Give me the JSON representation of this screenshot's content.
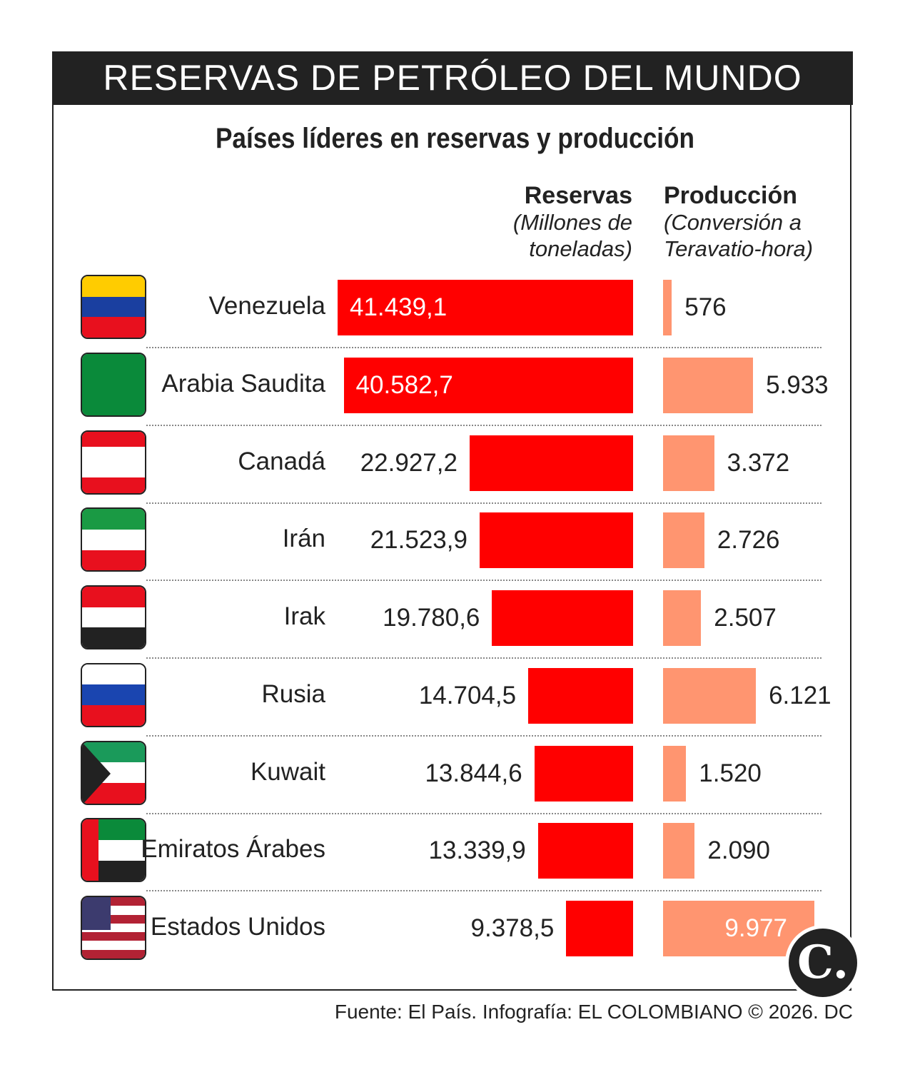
{
  "title": "RESERVAS DE PETRÓLEO DEL MUNDO",
  "subtitle": "Países líderes en reservas y producción",
  "headers": {
    "reservas": "Reservas",
    "reservas_unit_1": "(Millones de",
    "reservas_unit_2": "toneladas)",
    "produccion": "Producción",
    "produccion_unit_1": "(Conversión a",
    "produccion_unit_2": "Teravatio-hora)"
  },
  "source": "Fuente: El País. Infografía: EL COLOMBIANO © 2026. DC",
  "logo": "C.",
  "colors": {
    "reservas": "#ff0000",
    "produccion": "#ff9570",
    "title_bg": "#222222"
  },
  "chart_data": {
    "type": "bar",
    "orientation": "horizontal",
    "categories": [
      "Venezuela",
      "Arabia Saudita",
      "Canadá",
      "Irán",
      "Irak",
      "Rusia",
      "Kuwait",
      "Emiratos Árabes",
      "Estados Unidos"
    ],
    "series": [
      {
        "name": "Reservas",
        "values": [
          41439.1,
          40582.7,
          22927.2,
          21523.9,
          19780.6,
          14704.5,
          13844.6,
          13339.9,
          9378.5
        ],
        "labels": [
          "41.439,1",
          "40.582,7",
          "22.927,2",
          "21.523,9",
          "19.780,6",
          "14.704,5",
          "13.844,6",
          "13.339,9",
          "9.378,5"
        ]
      },
      {
        "name": "Producción",
        "values": [
          576,
          5933,
          3372,
          2726,
          2507,
          6121,
          1520,
          2090,
          9977
        ],
        "labels": [
          "576",
          "5.933",
          "3.372",
          "2.726",
          "2.507",
          "6.121",
          "1.520",
          "2.090",
          "9.977"
        ]
      }
    ],
    "flag_colors": [
      [
        "#ffcc00",
        "#1a3fa0",
        "#e8101e"
      ],
      [
        "#0a8a3a"
      ],
      [
        "#e8101e",
        "#ffffff",
        "#ffffff",
        "#e8101e"
      ],
      [
        "#1a9a44",
        "#ffffff",
        "#e8101e"
      ],
      [
        "#e8101e",
        "#ffffff",
        "#222222"
      ],
      [
        "#ffffff",
        "#1a45b0",
        "#e8101e"
      ],
      [
        "#1a9a5a",
        "#ffffff",
        "#e8101e"
      ],
      [
        "#0a8a3a",
        "#ffffff",
        "#222222"
      ],
      [
        "#b22234",
        "#ffffff",
        "#b22234",
        "#ffffff",
        "#b22234",
        "#ffffff",
        "#b22234"
      ]
    ]
  }
}
